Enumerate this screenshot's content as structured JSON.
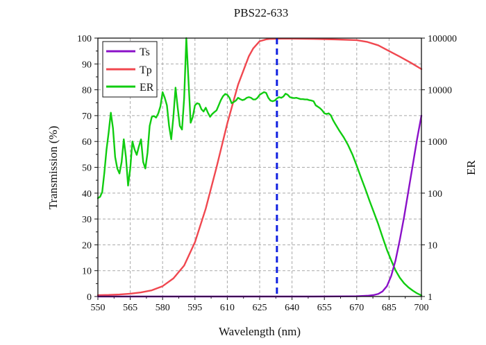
{
  "chart_data": {
    "type": "line",
    "title": "PBS22-633",
    "xlabel": "Wavelength (nm)",
    "ylabel": "Transmission (%)",
    "y2label": "ER",
    "xlim": [
      550,
      700
    ],
    "ylim": [
      0,
      100
    ],
    "y2lim": [
      1,
      100000
    ],
    "y2_scale": "log",
    "xticks": [
      "550",
      "565",
      "580",
      "595",
      "610",
      "625",
      "640",
      "655",
      "670",
      "685",
      "700"
    ],
    "yticks": [
      "0",
      "10",
      "20",
      "30",
      "40",
      "50",
      "60",
      "70",
      "80",
      "90",
      "100"
    ],
    "y2ticks": [
      "1",
      "10",
      "100",
      "1000",
      "10000",
      "100000"
    ],
    "grid": true,
    "legend_position": "top-left",
    "colors": {
      "Ts": "#8a10c8",
      "Tp": "#f0474f",
      "ER": "#10cc10",
      "marker": "#1020e0"
    },
    "marker_line": {
      "x": 633,
      "style": "dashed"
    },
    "series": [
      {
        "name": "Ts",
        "axis": "left",
        "x": [
          550,
          600,
          650,
          670,
          675,
          678,
          680,
          682,
          684,
          686,
          688,
          690,
          692,
          694,
          696,
          698,
          700
        ],
        "y": [
          0,
          0,
          0,
          0.1,
          0.3,
          0.6,
          1,
          2,
          4,
          8,
          14,
          22,
          31,
          41,
          51,
          61,
          70
        ]
      },
      {
        "name": "Tp",
        "axis": "left",
        "x": [
          550,
          555,
          560,
          565,
          570,
          575,
          580,
          585,
          590,
          595,
          600,
          605,
          610,
          615,
          620,
          622,
          625,
          628,
          630,
          635,
          640,
          650,
          660,
          670,
          675,
          680,
          685,
          690,
          695,
          700
        ],
        "y": [
          0.5,
          0.6,
          0.8,
          1.1,
          1.6,
          2.4,
          4,
          7,
          12,
          21,
          34,
          50,
          67,
          82,
          93,
          96,
          98.8,
          99.5,
          99.7,
          99.8,
          99.8,
          99.7,
          99.5,
          99.2,
          98.5,
          97.2,
          95,
          92.8,
          90.5,
          88
        ]
      },
      {
        "name": "ER",
        "axis": "right",
        "x": [
          550,
          551,
          552,
          553,
          554,
          555,
          556,
          557,
          558,
          559,
          560,
          561,
          562,
          563,
          564,
          565,
          566,
          567,
          568,
          569,
          570,
          571,
          572,
          573,
          574,
          575,
          576,
          577,
          578,
          579,
          580,
          581,
          582,
          583,
          584,
          585,
          586,
          587,
          588,
          589,
          590,
          591,
          592,
          593,
          594,
          595,
          596,
          597,
          598,
          599,
          600,
          601,
          602,
          603,
          604,
          605,
          606,
          607,
          608,
          609,
          610,
          611,
          612,
          613,
          614,
          615,
          616,
          617,
          618,
          619,
          620,
          621,
          622,
          623,
          624,
          625,
          626,
          627,
          628,
          629,
          630,
          631,
          632,
          633,
          634,
          635,
          636,
          637,
          638,
          639,
          640,
          641,
          642,
          643,
          644,
          645,
          646,
          647,
          648,
          649,
          650,
          651,
          652,
          653,
          654,
          655,
          656,
          657,
          658,
          659,
          660,
          662,
          664,
          666,
          668,
          670,
          672,
          674,
          676,
          678,
          680,
          682,
          684,
          686,
          688,
          690,
          692,
          694,
          696,
          698,
          700
        ],
        "y": [
          80,
          85,
          105,
          250,
          700,
          1500,
          3600,
          1800,
          500,
          300,
          240,
          400,
          1100,
          500,
          140,
          300,
          1000,
          700,
          550,
          800,
          1100,
          400,
          300,
          600,
          2000,
          3000,
          3100,
          2900,
          3500,
          4800,
          9000,
          7000,
          5000,
          2000,
          1100,
          3000,
          11000,
          4500,
          2000,
          1700,
          7000,
          100000,
          15000,
          2300,
          3000,
          5000,
          5500,
          5300,
          4200,
          3800,
          4500,
          3600,
          3000,
          3400,
          3700,
          4000,
          5000,
          6300,
          7500,
          8300,
          8000,
          7000,
          5500,
          5800,
          6200,
          7000,
          6600,
          6300,
          6500,
          7000,
          7200,
          7000,
          6500,
          6500,
          7000,
          8000,
          8500,
          9000,
          8700,
          7000,
          6200,
          6000,
          6200,
          6800,
          7200,
          7000,
          7400,
          8400,
          8000,
          7200,
          7000,
          6900,
          7000,
          6800,
          6600,
          6600,
          6500,
          6500,
          6300,
          6200,
          6000,
          5000,
          4700,
          4400,
          4000,
          3500,
          3400,
          3500,
          3200,
          2600,
          2200,
          1600,
          1200,
          850,
          560,
          340,
          200,
          120,
          70,
          42,
          25,
          14,
          8,
          5,
          3.2,
          2.3,
          1.8,
          1.5,
          1.3,
          1.15,
          1.05
        ]
      }
    ]
  }
}
